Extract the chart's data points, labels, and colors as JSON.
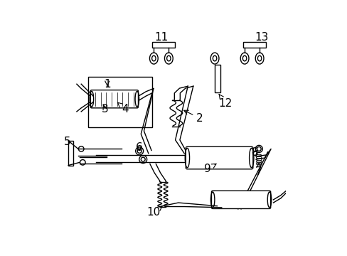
{
  "bg_color": "#ffffff",
  "line_color": "#000000",
  "label_fontsize": 11,
  "figsize": [
    4.89,
    3.6
  ],
  "dpi": 100
}
